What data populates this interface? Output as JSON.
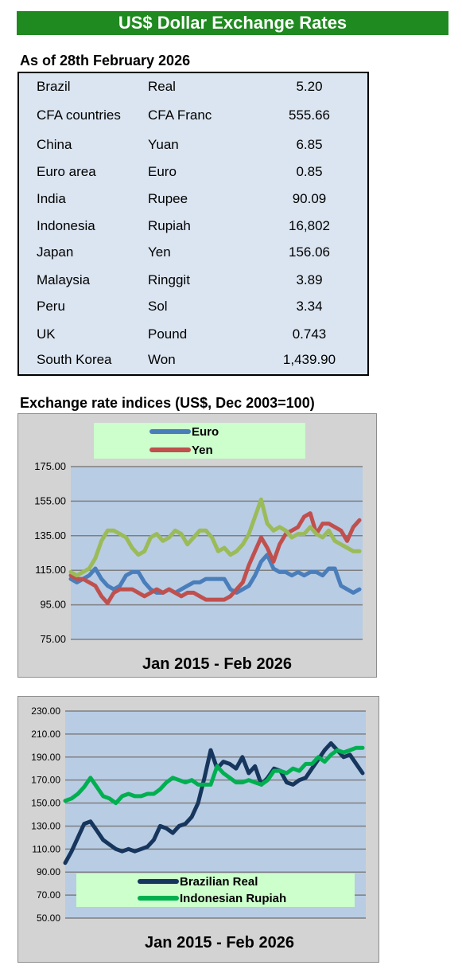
{
  "header": {
    "title": "US$ Dollar Exchange Rates"
  },
  "rates": {
    "as_of": "As of 28th February 2026",
    "rows": [
      {
        "country": "Brazil",
        "currency": "Real",
        "value": "5.20"
      },
      {
        "country": "CFA countries",
        "currency": "CFA Franc",
        "value": "555.66"
      },
      {
        "country": "China",
        "currency": "Yuan",
        "value": "6.85"
      },
      {
        "country": "Euro area",
        "currency": "Euro",
        "value": "0.85"
      },
      {
        "country": "India",
        "currency": "Rupee",
        "value": "90.09"
      },
      {
        "country": "Indonesia",
        "currency": "Rupiah",
        "value": "16,802"
      },
      {
        "country": "Japan",
        "currency": "Yen",
        "value": "156.06"
      },
      {
        "country": "Malaysia",
        "currency": "Ringgit",
        "value": "3.89"
      },
      {
        "country": "Peru",
        "currency": "Sol",
        "value": "3.34"
      },
      {
        "country": "UK",
        "currency": "Pound",
        "value": "0.743"
      },
      {
        "country": "South Korea",
        "currency": "Won",
        "value": "1,439.90"
      }
    ]
  },
  "indices": {
    "heading": "Exchange rate indices (US$, Dec 2003=100)"
  },
  "colors": {
    "euro": "#4a7ebb",
    "yen": "#c0504d",
    "light_green": "#9bbb59",
    "real": "#17365d",
    "rupiah": "#00b050",
    "plot_bg": "#b8cce4",
    "legend_bg": "#ccffcc"
  },
  "chart_data": [
    {
      "type": "line",
      "xlabel": "Jan 2015 - Feb  2026",
      "x_range": [
        "2015-01",
        "2026-02"
      ],
      "ylim": [
        75,
        175
      ],
      "yticks": [
        "175.00",
        "155.00",
        "135.00",
        "115.00",
        "95.00",
        "75.00"
      ],
      "grid": true,
      "legend_position": "top",
      "series": [
        {
          "name": "Euro",
          "color": "#4a7ebb",
          "values": [
            110,
            108,
            110,
            112,
            116,
            110,
            106,
            104,
            106,
            112,
            114,
            114,
            108,
            104,
            102,
            102,
            104,
            102,
            104,
            106,
            108,
            108,
            110,
            110,
            110,
            110,
            104,
            102,
            104,
            106,
            112,
            120,
            124,
            116,
            114,
            114,
            112,
            114,
            112,
            114,
            114,
            112,
            116,
            116,
            106,
            104,
            102,
            104
          ]
        },
        {
          "name": "Yen",
          "color": "#c0504d",
          "values": [
            112,
            110,
            110,
            108,
            106,
            100,
            96,
            102,
            104,
            104,
            104,
            102,
            100,
            102,
            104,
            102,
            104,
            102,
            100,
            102,
            102,
            100,
            98,
            98,
            98,
            98,
            100,
            104,
            108,
            118,
            126,
            134,
            128,
            120,
            130,
            136,
            138,
            140,
            146,
            148,
            136,
            142,
            142,
            140,
            138,
            132,
            140,
            144
          ]
        },
        {
          "name": "",
          "color": "#9bbb59",
          "values": [
            114,
            112,
            114,
            116,
            122,
            132,
            138,
            138,
            136,
            134,
            128,
            124,
            126,
            134,
            136,
            132,
            134,
            138,
            136,
            130,
            134,
            138,
            138,
            134,
            126,
            128,
            124,
            126,
            130,
            136,
            146,
            156,
            142,
            138,
            140,
            138,
            134,
            136,
            136,
            140,
            136,
            134,
            138,
            132,
            130,
            128,
            126,
            126
          ]
        }
      ]
    },
    {
      "type": "line",
      "xlabel": "Jan 2015 - Feb 2026",
      "x_range": [
        "2015-01",
        "2026-02"
      ],
      "ylim": [
        50,
        230
      ],
      "yticks": [
        "230.00",
        "210.00",
        "190.00",
        "170.00",
        "150.00",
        "130.00",
        "110.00",
        "90.00",
        "70.00",
        "50.00"
      ],
      "grid": true,
      "legend_position": "bottom",
      "series": [
        {
          "name": "Brazilian Real",
          "color": "#17365d",
          "values": [
            98,
            108,
            120,
            132,
            134,
            126,
            118,
            114,
            110,
            108,
            110,
            108,
            110,
            112,
            118,
            130,
            128,
            124,
            130,
            132,
            138,
            150,
            172,
            196,
            180,
            186,
            184,
            180,
            190,
            176,
            182,
            166,
            172,
            180,
            178,
            168,
            166,
            170,
            172,
            180,
            188,
            196,
            202,
            196,
            190,
            192,
            184,
            176
          ]
        },
        {
          "name": "Indonesian Rupiah",
          "color": "#00b050",
          "values": [
            152,
            154,
            158,
            164,
            172,
            164,
            156,
            154,
            150,
            156,
            158,
            156,
            156,
            158,
            158,
            162,
            168,
            172,
            170,
            168,
            170,
            166,
            166,
            166,
            182,
            176,
            172,
            168,
            168,
            170,
            168,
            166,
            170,
            178,
            178,
            176,
            180,
            178,
            184,
            184,
            190,
            186,
            192,
            196,
            194,
            196,
            198,
            198
          ]
        }
      ]
    }
  ]
}
